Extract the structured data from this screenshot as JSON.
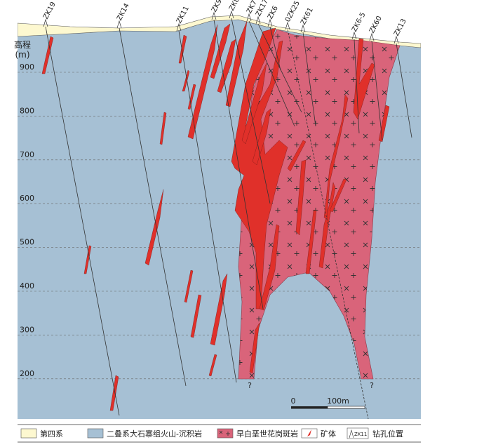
{
  "axis_label": "高程",
  "axis_unit": "(m)",
  "elevations": [
    900,
    800,
    700,
    600,
    500,
    400,
    300,
    200
  ],
  "boreholes": [
    "ZK19",
    "ZK14",
    "ZK11",
    "ZK9",
    "ZK8",
    "ZK7",
    "ZK17",
    "ZK6",
    "0ZK25",
    "ZK61",
    "ZK6-5",
    "ZK60",
    "ZK13"
  ],
  "uncertain": [
    "?",
    "?"
  ],
  "scale": {
    "start": "0",
    "end": "100m"
  },
  "legend": [
    {
      "label": "第四系"
    },
    {
      "label": "二叠系大石寨组火山-沉积岩"
    },
    {
      "label": "早白垩世花岗斑岩"
    },
    {
      "label": "矿体"
    },
    {
      "icon": "ZK11",
      "label": "钻孔位置"
    }
  ]
}
